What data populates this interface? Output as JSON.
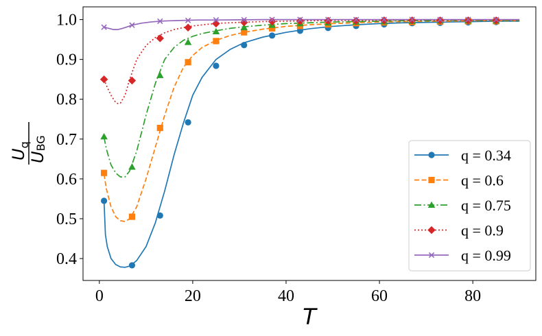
{
  "chart_data": {
    "type": "line",
    "title": "",
    "xlabel": "T",
    "ylabel": {
      "numerator_main": "U",
      "numerator_sub": "q",
      "denominator_main": "U",
      "denominator_sub": "BG"
    },
    "xlim": [
      -3.5,
      93.5
    ],
    "ylim": [
      0.345,
      1.032
    ],
    "xticks": [
      0,
      20,
      40,
      60,
      80
    ],
    "yticks": [
      0.4,
      0.5,
      0.6,
      0.7,
      0.8,
      0.9,
      1.0
    ],
    "xtick_labels": [
      "0",
      "20",
      "40",
      "60",
      "80"
    ],
    "ytick_labels": [
      "0.4",
      "0.5",
      "0.6",
      "0.7",
      "0.8",
      "0.9",
      "1.0"
    ],
    "legend_position": "lower-right",
    "series": [
      {
        "name": "q = 0.34",
        "color": "#1f77b4",
        "line_style": "solid",
        "marker": "circle",
        "x": [
          1,
          1.3,
          1.7,
          2.5,
          3.5,
          4.5,
          5.5,
          6.5,
          8,
          10,
          12,
          14,
          16,
          18,
          20,
          22,
          25,
          28,
          31,
          35,
          40,
          45,
          50,
          55,
          60,
          65,
          70,
          75,
          80,
          85,
          90
        ],
        "y": [
          0.545,
          0.46,
          0.43,
          0.4,
          0.385,
          0.379,
          0.378,
          0.381,
          0.395,
          0.43,
          0.49,
          0.57,
          0.66,
          0.74,
          0.81,
          0.855,
          0.9,
          0.925,
          0.942,
          0.956,
          0.968,
          0.977,
          0.983,
          0.987,
          0.99,
          0.992,
          0.993,
          0.994,
          0.995,
          0.996,
          0.996
        ],
        "marker_x": [
          1,
          7,
          13,
          19,
          25,
          31,
          37,
          43,
          49,
          55,
          61,
          67,
          73,
          79,
          85
        ],
        "marker_y": [
          0.545,
          0.383,
          0.508,
          0.742,
          0.884,
          0.936,
          0.96,
          0.972,
          0.979,
          0.984,
          0.988,
          0.991,
          0.992,
          0.993,
          0.994
        ]
      },
      {
        "name": "q = 0.6",
        "color": "#ff7f0e",
        "line_style": "dashed",
        "marker": "square",
        "x": [
          1,
          1.5,
          2.5,
          3.5,
          4.5,
          5.5,
          6.5,
          8,
          10,
          12,
          14,
          16,
          18,
          20,
          22,
          25,
          28,
          31,
          35,
          40,
          45,
          50,
          55,
          60,
          65,
          70,
          75,
          80,
          85,
          90
        ],
        "y": [
          0.612,
          0.575,
          0.53,
          0.505,
          0.495,
          0.493,
          0.5,
          0.53,
          0.6,
          0.68,
          0.76,
          0.83,
          0.88,
          0.91,
          0.93,
          0.948,
          0.96,
          0.968,
          0.976,
          0.983,
          0.987,
          0.99,
          0.992,
          0.994,
          0.995,
          0.996,
          0.996,
          0.997,
          0.997,
          0.997
        ],
        "marker_x": [
          1,
          7,
          13,
          19,
          25,
          31,
          37,
          43,
          49,
          55,
          61,
          67,
          73,
          79,
          85
        ],
        "marker_y": [
          0.615,
          0.505,
          0.728,
          0.893,
          0.946,
          0.968,
          0.978,
          0.984,
          0.988,
          0.991,
          0.993,
          0.994,
          0.995,
          0.996,
          0.996
        ]
      },
      {
        "name": "q = 0.75",
        "color": "#2ca02c",
        "line_style": "dashdot",
        "marker": "triangle",
        "x": [
          1,
          1.5,
          2.5,
          3.5,
          4.5,
          5.5,
          6.5,
          8,
          10,
          12,
          14,
          16,
          18,
          20,
          22,
          25,
          28,
          31,
          35,
          40,
          45,
          50,
          55,
          60,
          65,
          70,
          75,
          80,
          85,
          90
        ],
        "y": [
          0.705,
          0.675,
          0.635,
          0.615,
          0.605,
          0.605,
          0.62,
          0.67,
          0.76,
          0.84,
          0.9,
          0.93,
          0.948,
          0.958,
          0.965,
          0.972,
          0.978,
          0.982,
          0.986,
          0.99,
          0.992,
          0.994,
          0.995,
          0.996,
          0.997,
          0.997,
          0.998,
          0.998,
          0.998,
          0.998
        ],
        "marker_x": [
          1,
          7,
          13,
          19,
          25,
          31,
          37,
          43,
          49,
          55,
          61,
          67,
          73,
          79,
          85
        ],
        "marker_y": [
          0.706,
          0.63,
          0.86,
          0.943,
          0.97,
          0.98,
          0.986,
          0.99,
          0.992,
          0.994,
          0.995,
          0.996,
          0.997,
          0.997,
          0.997
        ]
      },
      {
        "name": "q = 0.9",
        "color": "#d62728",
        "line_style": "dotted",
        "marker": "diamond",
        "x": [
          1,
          1.5,
          2.5,
          3.5,
          4,
          4.5,
          5.5,
          6.5,
          8,
          10,
          12,
          14,
          16,
          18,
          20,
          23,
          26,
          30,
          35,
          40,
          45,
          50,
          55,
          60,
          65,
          70,
          75,
          80,
          85,
          90
        ],
        "y": [
          0.85,
          0.835,
          0.81,
          0.792,
          0.789,
          0.79,
          0.81,
          0.85,
          0.9,
          0.935,
          0.955,
          0.967,
          0.975,
          0.98,
          0.984,
          0.988,
          0.991,
          0.993,
          0.995,
          0.996,
          0.997,
          0.998,
          0.998,
          0.998,
          0.999,
          0.999,
          0.999,
          0.999,
          0.999,
          0.999
        ],
        "marker_x": [
          1,
          7,
          13,
          19,
          25,
          31,
          37,
          43,
          49,
          55,
          61,
          67,
          73,
          79,
          85
        ],
        "marker_y": [
          0.85,
          0.847,
          0.953,
          0.98,
          0.99,
          0.993,
          0.995,
          0.996,
          0.997,
          0.997,
          0.998,
          0.998,
          0.998,
          0.998,
          0.998
        ]
      },
      {
        "name": "q = 0.99",
        "color": "#9467bd",
        "line_style": "solid",
        "marker": "x",
        "x": [
          1,
          2,
          3,
          4,
          5,
          6,
          7,
          9,
          11,
          13,
          15,
          18,
          21,
          25,
          30,
          35,
          40,
          50,
          60,
          70,
          80,
          90
        ],
        "y": [
          0.981,
          0.978,
          0.975,
          0.975,
          0.978,
          0.982,
          0.986,
          0.991,
          0.994,
          0.996,
          0.997,
          0.998,
          0.999,
          0.999,
          0.9995,
          1.0,
          1.0,
          1.0,
          1.0,
          1.0,
          1.0,
          1.0
        ],
        "marker_x": [
          1,
          7,
          13,
          19,
          25,
          31,
          37,
          43,
          49,
          55,
          61,
          67,
          73,
          79,
          85
        ],
        "marker_y": [
          0.981,
          0.986,
          0.996,
          0.998,
          0.999,
          0.9995,
          1.0,
          1.0,
          1.0,
          1.0,
          1.0,
          1.0,
          1.0,
          1.0,
          1.0
        ]
      }
    ]
  }
}
